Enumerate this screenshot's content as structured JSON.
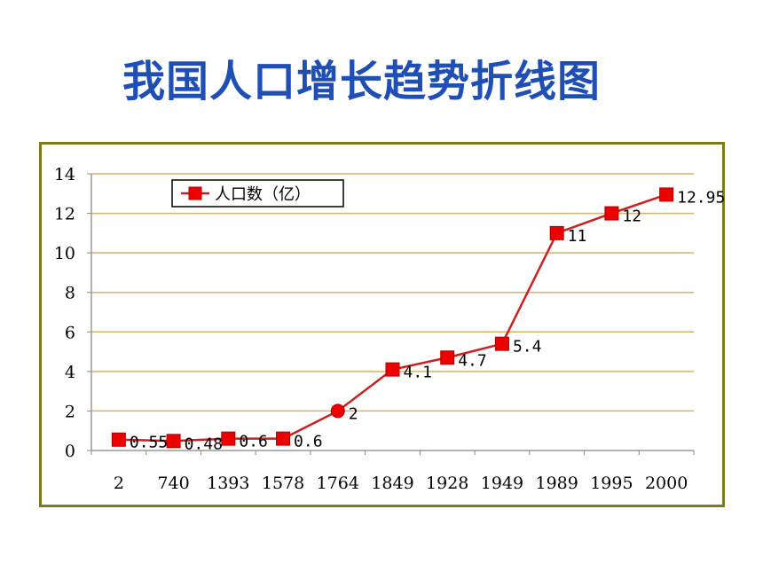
{
  "header": {
    "title": "我国人口增长趋势折线图"
  },
  "colors": {
    "title": "#1f4fb4",
    "frame": "#7b7b1d",
    "grid": "#d7b36a",
    "series": "#cc1f1f",
    "marker": "#ee0000"
  },
  "chart_data": {
    "type": "line",
    "categories": [
      "2",
      "740",
      "1393",
      "1578",
      "1764",
      "1849",
      "1928",
      "1949",
      "1989",
      "1995",
      "2000"
    ],
    "series": [
      {
        "name": "人口数（亿）",
        "values": [
          0.55,
          0.48,
          0.6,
          0.6,
          2,
          4.1,
          4.7,
          5.4,
          11,
          12,
          12.95
        ],
        "data_labels": [
          "0.55",
          "0.48",
          "0.6",
          "0.6",
          "2",
          "4.1",
          "4.7",
          "5.4",
          "11",
          "12",
          "12.95"
        ],
        "markers": [
          "square",
          "square",
          "square",
          "square",
          "circle",
          "square",
          "square",
          "square",
          "square",
          "square",
          "square"
        ]
      }
    ],
    "ylim": [
      0,
      14
    ],
    "yticks": [
      "0",
      "2",
      "4",
      "6",
      "8",
      "10",
      "12",
      "14"
    ],
    "xlabel": "",
    "ylabel": "",
    "grid": true,
    "legend": "top-left"
  }
}
